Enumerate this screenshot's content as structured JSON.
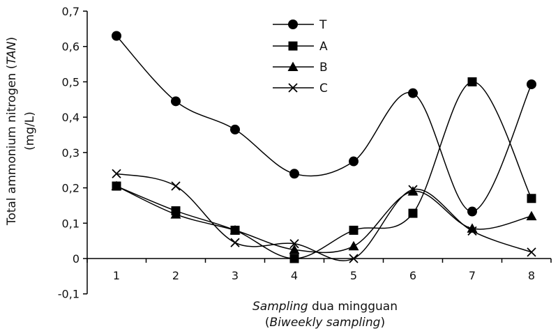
{
  "chart_data": {
    "type": "line",
    "x": [
      1,
      2,
      3,
      4,
      5,
      6,
      7,
      8
    ],
    "ylim": [
      -0.1,
      0.7
    ],
    "yticks": [
      "-0,1",
      "0",
      "0,1",
      "0,2",
      "0,3",
      "0,4",
      "0,5",
      "0,6",
      "0,7"
    ],
    "xticks": [
      "1",
      "2",
      "3",
      "4",
      "5",
      "6",
      "7",
      "8"
    ],
    "ylabel_line1_prefix": "Total ammonium nitrogen (",
    "ylabel_line1_italic": "TAN",
    "ylabel_line1_suffix": ")",
    "ylabel_line2": "(mg/L)",
    "xlabel_line1_italic": "Sampling",
    "xlabel_line1_rest": " dua mingguan",
    "xlabel_line2_open": "(",
    "xlabel_line2_italic": "Biweekly sampling",
    "xlabel_line2_close": ")",
    "legend_position": "top-center",
    "series": [
      {
        "name": "T",
        "marker": "circle",
        "values": [
          0.63,
          0.445,
          0.365,
          0.24,
          0.275,
          0.468,
          0.133,
          0.493
        ]
      },
      {
        "name": "A",
        "marker": "square",
        "values": [
          0.205,
          0.135,
          0.08,
          0.0,
          0.08,
          0.128,
          0.5,
          0.17
        ]
      },
      {
        "name": "B",
        "marker": "triangle",
        "values": [
          0.205,
          0.125,
          0.08,
          0.025,
          0.035,
          0.19,
          0.085,
          0.12
        ]
      },
      {
        "name": "C",
        "marker": "cross",
        "values": [
          0.24,
          0.205,
          0.045,
          0.042,
          0.0,
          0.195,
          0.078,
          0.018
        ]
      }
    ],
    "colors": {
      "line": "#000000",
      "marker": "#000000"
    }
  }
}
